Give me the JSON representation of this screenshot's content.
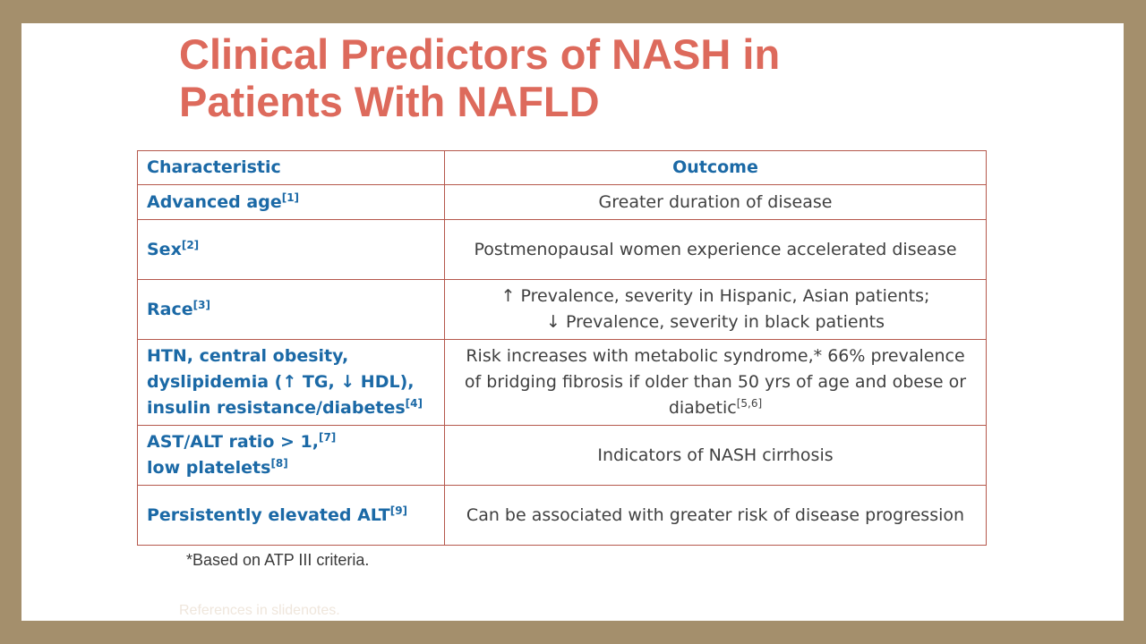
{
  "slide": {
    "title_line1": "Clinical Predictors of NASH in",
    "title_line2": "Patients With NAFLD",
    "footnote": "*Based on ATP  III criteria.",
    "references": "References in slidenotes."
  },
  "table": {
    "header": {
      "characteristic": "Characteristic",
      "outcome": "Outcome"
    },
    "rows": [
      {
        "char_lines": [
          "Advanced age"
        ],
        "char_sup": "[1]",
        "outcome_lines": [
          "Greater duration of disease"
        ]
      },
      {
        "char_lines": [
          "Sex"
        ],
        "char_sup": "[2]",
        "outcome_lines": [
          "Postmenopausal women experience accelerated disease"
        ]
      },
      {
        "char_lines": [
          "Race"
        ],
        "char_sup": "[3]",
        "outcome_lines": [
          "↑ Prevalence, severity in Hispanic, Asian patients;",
          "↓ Prevalence, severity in black patients"
        ]
      },
      {
        "char_lines": [
          "HTN, central obesity,",
          "dyslipidemia (↑ TG, ↓ HDL),",
          "insulin resistance/diabetes"
        ],
        "char_sup": "[4]",
        "outcome_lines": [
          "Risk increases with metabolic syndrome,* 66% prevalence",
          "of bridging fibrosis if older than 50 yrs of age and obese or",
          "diabetic"
        ],
        "outcome_sup": "[5,6]"
      },
      {
        "char_lines": [
          "AST/ALT ratio > 1,",
          "low platelets"
        ],
        "char_sups": [
          "[7]",
          "[8]"
        ],
        "outcome_lines": [
          "Indicators of NASH cirrhosis"
        ]
      },
      {
        "char_lines": [
          "Persistently elevated ALT"
        ],
        "char_sup": "[9]",
        "outcome_lines": [
          "Can be associated with greater risk of disease progression"
        ]
      }
    ]
  }
}
